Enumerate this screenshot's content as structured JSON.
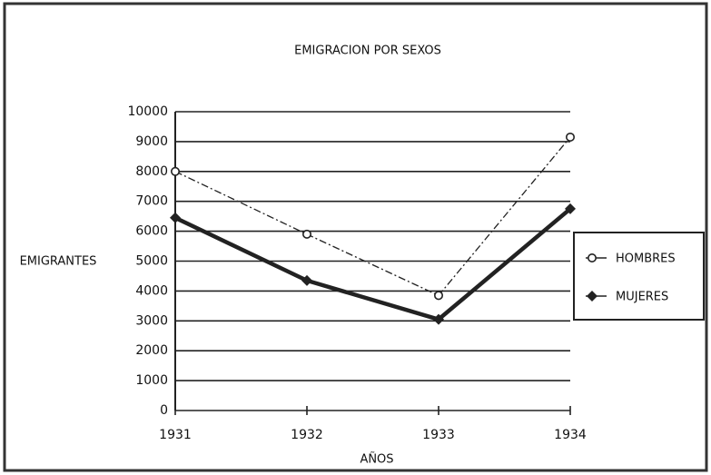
{
  "chart_data": {
    "type": "line",
    "title": "EMIGRACION POR SEXOS",
    "y_label": "EMIGRANTES",
    "x_label": "AÑOS",
    "categories": [
      "1931",
      "1932",
      "1933",
      "1934"
    ],
    "series": [
      {
        "name": "HOMBRES",
        "color": "#222222",
        "values": [
          8000,
          5900,
          3850,
          9150
        ]
      },
      {
        "name": "MUJERES",
        "color": "#222222",
        "values": [
          6450,
          4350,
          3050,
          6750
        ]
      }
    ],
    "ylim": [
      0,
      10000
    ],
    "yticks": [
      0,
      1000,
      2000,
      3000,
      4000,
      5000,
      6000,
      7000,
      8000,
      9000,
      10000
    ],
    "grid": true,
    "legend": "right"
  }
}
